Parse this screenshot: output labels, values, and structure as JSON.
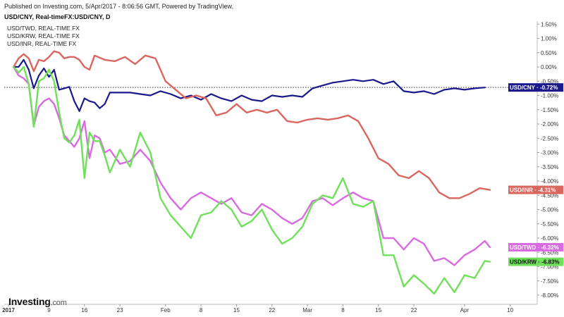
{
  "header": {
    "published": "Published on Investing.com, 5/Apr/2017 - 8:06:56 GMT, Powered by TradingView.",
    "title": "USD/CNY, Real-timeFX:USD/CNY, D"
  },
  "legend": [
    "USD/TWD, REAL-TIME FX",
    "USD/KRW, REAL-TIME FX",
    "USD/INR, REAL-TIME FX"
  ],
  "logo": {
    "main": "Investing",
    "domain": ".com"
  },
  "colors": {
    "cny": "#1a1a8c",
    "inr": "#d9665f",
    "twd": "#d96be0",
    "krw": "#6fe05a"
  },
  "chart_data": {
    "type": "line",
    "ylim": [
      -8.35,
      1.6
    ],
    "y_ticks": [
      "1.50%",
      "1.00%",
      "0.50%",
      "0.00%",
      "-0.50%",
      "-1.00%",
      "-1.50%",
      "-2.00%",
      "-2.50%",
      "-3.00%",
      "-3.50%",
      "-4.00%",
      "-4.50%",
      "-5.00%",
      "-5.50%",
      "-6.00%",
      "-6.50%",
      "-7.00%",
      "-7.50%",
      "-8.00%"
    ],
    "y_tick_values": [
      1.5,
      1,
      0.5,
      0,
      -0.5,
      -1,
      -1.5,
      -2,
      -2.5,
      -3,
      -3.5,
      -4,
      -4.5,
      -5,
      -5.5,
      -6,
      -6.5,
      -7,
      -7.5,
      -8
    ],
    "x_range": [
      "2017-01-01",
      "2017-04-12"
    ],
    "x_ticks": [
      {
        "label": "2017",
        "date": "2017-01-01",
        "bold": true
      },
      {
        "label": "9",
        "date": "2017-01-09"
      },
      {
        "label": "16",
        "date": "2017-01-16"
      },
      {
        "label": "23",
        "date": "2017-01-23"
      },
      {
        "label": "Feb",
        "date": "2017-02-01"
      },
      {
        "label": "8",
        "date": "2017-02-08"
      },
      {
        "label": "15",
        "date": "2017-02-15"
      },
      {
        "label": "22",
        "date": "2017-02-22"
      },
      {
        "label": "Mar",
        "date": "2017-03-01"
      },
      {
        "label": "8",
        "date": "2017-03-08"
      },
      {
        "label": "15",
        "date": "2017-03-15"
      },
      {
        "label": "22",
        "date": "2017-03-22"
      },
      {
        "label": "Apr",
        "date": "2017-04-01"
      },
      {
        "label": "10",
        "date": "2017-04-10"
      }
    ],
    "reference_line": -0.72,
    "series": [
      {
        "name": "USD/CNY",
        "label_value": "-0.72%",
        "color_key": "cny",
        "points": [
          [
            "2017-01-02",
            0.0
          ],
          [
            "2017-01-03",
            0.0
          ],
          [
            "2017-01-04",
            0.25
          ],
          [
            "2017-01-05",
            -0.1
          ],
          [
            "2017-01-06",
            -0.75
          ],
          [
            "2017-01-07",
            -0.3
          ],
          [
            "2017-01-08",
            -0.05
          ],
          [
            "2017-01-09",
            -0.35
          ],
          [
            "2017-01-10",
            -0.1
          ],
          [
            "2017-01-11",
            -0.8
          ],
          [
            "2017-01-12",
            -0.75
          ],
          [
            "2017-01-13",
            -0.7
          ],
          [
            "2017-01-14",
            -1.2
          ],
          [
            "2017-01-15",
            -1.55
          ],
          [
            "2017-01-16",
            -1.1
          ],
          [
            "2017-01-17",
            -1.2
          ],
          [
            "2017-01-18",
            -1.25
          ],
          [
            "2017-01-19",
            -1.45
          ],
          [
            "2017-01-20",
            -1.3
          ],
          [
            "2017-01-21",
            -0.9
          ],
          [
            "2017-01-23",
            -0.9
          ],
          [
            "2017-01-25",
            -0.9
          ],
          [
            "2017-01-27",
            -0.95
          ],
          [
            "2017-01-29",
            -1.0
          ],
          [
            "2017-01-31",
            -0.85
          ],
          [
            "2017-02-02",
            -0.95
          ],
          [
            "2017-02-04",
            -1.1
          ],
          [
            "2017-02-06",
            -1.0
          ],
          [
            "2017-02-08",
            -1.15
          ],
          [
            "2017-02-10",
            -0.95
          ],
          [
            "2017-02-12",
            -1.1
          ],
          [
            "2017-02-14",
            -1.2
          ],
          [
            "2017-02-16",
            -1.0
          ],
          [
            "2017-02-18",
            -1.15
          ],
          [
            "2017-02-20",
            -1.2
          ],
          [
            "2017-02-22",
            -1.0
          ],
          [
            "2017-02-24",
            -1.05
          ],
          [
            "2017-02-26",
            -1.0
          ],
          [
            "2017-02-28",
            -1.05
          ],
          [
            "2017-03-02",
            -0.75
          ],
          [
            "2017-03-04",
            -0.65
          ],
          [
            "2017-03-06",
            -0.55
          ],
          [
            "2017-03-08",
            -0.5
          ],
          [
            "2017-03-10",
            -0.45
          ],
          [
            "2017-03-12",
            -0.5
          ],
          [
            "2017-03-14",
            -0.45
          ],
          [
            "2017-03-16",
            -0.6
          ],
          [
            "2017-03-18",
            -0.5
          ],
          [
            "2017-03-20",
            -0.85
          ],
          [
            "2017-03-22",
            -0.9
          ],
          [
            "2017-03-24",
            -0.85
          ],
          [
            "2017-03-26",
            -0.95
          ],
          [
            "2017-03-28",
            -0.8
          ],
          [
            "2017-03-30",
            -0.75
          ],
          [
            "2017-04-01",
            -0.8
          ],
          [
            "2017-04-03",
            -0.75
          ],
          [
            "2017-04-05",
            -0.72
          ]
        ]
      },
      {
        "name": "USD/INR",
        "label_value": "-4.31%",
        "color_key": "inr",
        "points": [
          [
            "2017-01-02",
            0.0
          ],
          [
            "2017-01-03",
            0.3
          ],
          [
            "2017-01-04",
            0.45
          ],
          [
            "2017-01-05",
            0.3
          ],
          [
            "2017-01-06",
            -0.15
          ],
          [
            "2017-01-07",
            0.25
          ],
          [
            "2017-01-08",
            0.2
          ],
          [
            "2017-01-09",
            0.35
          ],
          [
            "2017-01-10",
            0.55
          ],
          [
            "2017-01-11",
            0.5
          ],
          [
            "2017-01-12",
            0.3
          ],
          [
            "2017-01-13",
            0.35
          ],
          [
            "2017-01-14",
            0.35
          ],
          [
            "2017-01-15",
            0.25
          ],
          [
            "2017-01-16",
            0.0
          ],
          [
            "2017-01-17",
            -0.1
          ],
          [
            "2017-01-18",
            0.4
          ],
          [
            "2017-01-20",
            0.25
          ],
          [
            "2017-01-22",
            0.2
          ],
          [
            "2017-01-24",
            0.35
          ],
          [
            "2017-01-26",
            0.1
          ],
          [
            "2017-01-28",
            0.4
          ],
          [
            "2017-01-30",
            0.3
          ],
          [
            "2017-02-01",
            -0.5
          ],
          [
            "2017-02-03",
            -0.8
          ],
          [
            "2017-02-05",
            -1.1
          ],
          [
            "2017-02-07",
            -1.0
          ],
          [
            "2017-02-09",
            -1.1
          ],
          [
            "2017-02-11",
            -1.7
          ],
          [
            "2017-02-13",
            -1.6
          ],
          [
            "2017-02-15",
            -1.3
          ],
          [
            "2017-02-17",
            -1.6
          ],
          [
            "2017-02-19",
            -1.5
          ],
          [
            "2017-02-21",
            -1.6
          ],
          [
            "2017-02-23",
            -1.5
          ],
          [
            "2017-02-25",
            -1.9
          ],
          [
            "2017-02-27",
            -1.95
          ],
          [
            "2017-03-01",
            -1.85
          ],
          [
            "2017-03-03",
            -1.8
          ],
          [
            "2017-03-05",
            -1.85
          ],
          [
            "2017-03-07",
            -1.8
          ],
          [
            "2017-03-09",
            -1.7
          ],
          [
            "2017-03-11",
            -1.9
          ],
          [
            "2017-03-13",
            -2.5
          ],
          [
            "2017-03-15",
            -3.2
          ],
          [
            "2017-03-17",
            -3.4
          ],
          [
            "2017-03-19",
            -3.8
          ],
          [
            "2017-03-21",
            -3.9
          ],
          [
            "2017-03-23",
            -3.65
          ],
          [
            "2017-03-25",
            -3.9
          ],
          [
            "2017-03-27",
            -4.4
          ],
          [
            "2017-03-29",
            -4.6
          ],
          [
            "2017-03-31",
            -4.6
          ],
          [
            "2017-04-02",
            -4.45
          ],
          [
            "2017-04-04",
            -4.25
          ],
          [
            "2017-04-06",
            -4.31
          ]
        ]
      },
      {
        "name": "USD/TWD",
        "label_value": "-6.32%",
        "color_key": "twd",
        "points": [
          [
            "2017-01-02",
            0.0
          ],
          [
            "2017-01-03",
            -0.3
          ],
          [
            "2017-01-04",
            -0.4
          ],
          [
            "2017-01-05",
            -0.6
          ],
          [
            "2017-01-06",
            -2.05
          ],
          [
            "2017-01-07",
            -1.4
          ],
          [
            "2017-01-08",
            -1.2
          ],
          [
            "2017-01-09",
            -1.1
          ],
          [
            "2017-01-10",
            -1.3
          ],
          [
            "2017-01-11",
            -1.8
          ],
          [
            "2017-01-12",
            -2.4
          ],
          [
            "2017-01-13",
            -2.6
          ],
          [
            "2017-01-14",
            -2.8
          ],
          [
            "2017-01-15",
            -2.5
          ],
          [
            "2017-01-16",
            -1.9
          ],
          [
            "2017-01-17",
            -3.2
          ],
          [
            "2017-01-18",
            -2.4
          ],
          [
            "2017-01-19",
            -2.5
          ],
          [
            "2017-01-20",
            -3.0
          ],
          [
            "2017-01-21",
            -2.9
          ],
          [
            "2017-01-23",
            -3.4
          ],
          [
            "2017-01-25",
            -3.3
          ],
          [
            "2017-01-27",
            -2.9
          ],
          [
            "2017-01-29",
            -3.3
          ],
          [
            "2017-01-31",
            -4.05
          ],
          [
            "2017-02-02",
            -4.6
          ],
          [
            "2017-02-04",
            -5.0
          ],
          [
            "2017-02-06",
            -4.6
          ],
          [
            "2017-02-08",
            -4.4
          ],
          [
            "2017-02-10",
            -4.6
          ],
          [
            "2017-02-12",
            -4.8
          ],
          [
            "2017-02-14",
            -4.6
          ],
          [
            "2017-02-16",
            -5.1
          ],
          [
            "2017-02-18",
            -5.2
          ],
          [
            "2017-02-20",
            -4.8
          ],
          [
            "2017-02-22",
            -5.0
          ],
          [
            "2017-02-24",
            -5.3
          ],
          [
            "2017-02-26",
            -5.5
          ],
          [
            "2017-02-28",
            -5.3
          ],
          [
            "2017-03-02",
            -4.7
          ],
          [
            "2017-03-04",
            -4.6
          ],
          [
            "2017-03-06",
            -4.85
          ],
          [
            "2017-03-08",
            -4.6
          ],
          [
            "2017-03-10",
            -4.4
          ],
          [
            "2017-03-12",
            -4.6
          ],
          [
            "2017-03-14",
            -4.7
          ],
          [
            "2017-03-16",
            -6.0
          ],
          [
            "2017-03-18",
            -6.0
          ],
          [
            "2017-03-20",
            -6.4
          ],
          [
            "2017-03-22",
            -6.0
          ],
          [
            "2017-03-24",
            -6.2
          ],
          [
            "2017-03-26",
            -6.8
          ],
          [
            "2017-03-28",
            -6.7
          ],
          [
            "2017-03-30",
            -6.95
          ],
          [
            "2017-04-01",
            -6.6
          ],
          [
            "2017-04-03",
            -6.4
          ],
          [
            "2017-04-05",
            -6.1
          ],
          [
            "2017-04-06",
            -6.32
          ]
        ]
      },
      {
        "name": "USD/KRW",
        "label_value": "-6.83%",
        "color_key": "krw",
        "points": [
          [
            "2017-01-02",
            0.0
          ],
          [
            "2017-01-03",
            -0.2
          ],
          [
            "2017-01-04",
            0.0
          ],
          [
            "2017-01-05",
            -0.6
          ],
          [
            "2017-01-06",
            -2.1
          ],
          [
            "2017-01-07",
            -0.5
          ],
          [
            "2017-01-08",
            -0.4
          ],
          [
            "2017-01-09",
            -0.1
          ],
          [
            "2017-01-10",
            -0.5
          ],
          [
            "2017-01-11",
            -1.6
          ],
          [
            "2017-01-12",
            -2.5
          ],
          [
            "2017-01-13",
            -2.65
          ],
          [
            "2017-01-14",
            -2.4
          ],
          [
            "2017-01-15",
            -1.85
          ],
          [
            "2017-01-16",
            -3.9
          ],
          [
            "2017-01-17",
            -2.3
          ],
          [
            "2017-01-18",
            -2.6
          ],
          [
            "2017-01-19",
            -2.6
          ],
          [
            "2017-01-20",
            -3.1
          ],
          [
            "2017-01-21",
            -3.7
          ],
          [
            "2017-01-23",
            -2.9
          ],
          [
            "2017-01-25",
            -3.5
          ],
          [
            "2017-01-27",
            -2.3
          ],
          [
            "2017-01-29",
            -3.0
          ],
          [
            "2017-01-31",
            -4.6
          ],
          [
            "2017-02-02",
            -5.2
          ],
          [
            "2017-02-04",
            -5.6
          ],
          [
            "2017-02-06",
            -6.0
          ],
          [
            "2017-02-08",
            -5.2
          ],
          [
            "2017-02-10",
            -5.1
          ],
          [
            "2017-02-12",
            -4.7
          ],
          [
            "2017-02-14",
            -5.0
          ],
          [
            "2017-02-16",
            -5.6
          ],
          [
            "2017-02-18",
            -5.4
          ],
          [
            "2017-02-20",
            -5.0
          ],
          [
            "2017-02-22",
            -5.7
          ],
          [
            "2017-02-24",
            -6.2
          ],
          [
            "2017-02-26",
            -6.0
          ],
          [
            "2017-02-28",
            -5.6
          ],
          [
            "2017-03-02",
            -4.8
          ],
          [
            "2017-03-04",
            -4.5
          ],
          [
            "2017-03-06",
            -4.6
          ],
          [
            "2017-03-08",
            -3.9
          ],
          [
            "2017-03-10",
            -4.8
          ],
          [
            "2017-03-12",
            -4.9
          ],
          [
            "2017-03-14",
            -4.7
          ],
          [
            "2017-03-16",
            -6.6
          ],
          [
            "2017-03-18",
            -6.6
          ],
          [
            "2017-03-20",
            -7.7
          ],
          [
            "2017-03-22",
            -7.3
          ],
          [
            "2017-03-24",
            -7.6
          ],
          [
            "2017-03-26",
            -7.95
          ],
          [
            "2017-03-28",
            -7.4
          ],
          [
            "2017-03-30",
            -7.9
          ],
          [
            "2017-04-01",
            -7.3
          ],
          [
            "2017-04-03",
            -7.4
          ],
          [
            "2017-04-05",
            -6.8
          ],
          [
            "2017-04-06",
            -6.83
          ]
        ]
      }
    ]
  }
}
